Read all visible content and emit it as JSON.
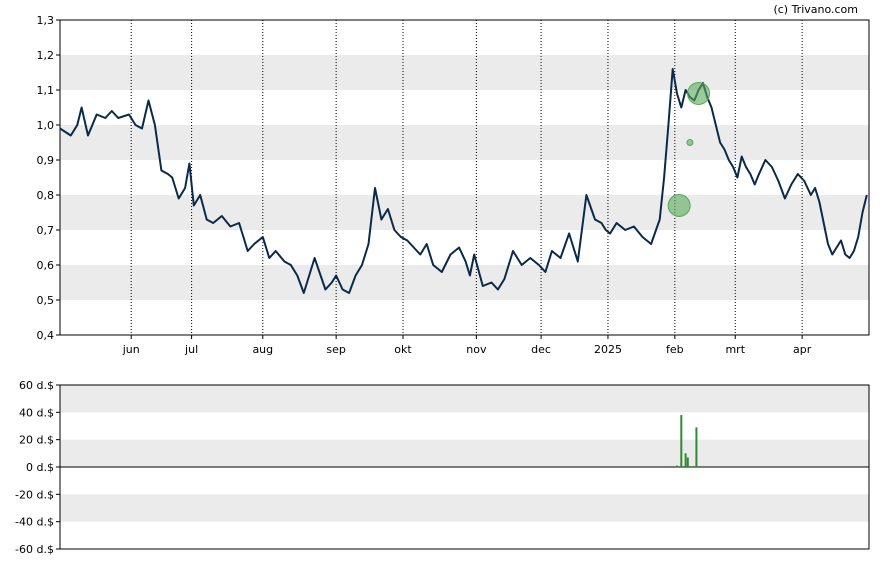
{
  "credit": "(c) Trivano.com",
  "colors": {
    "line": "#0b2a4a",
    "band": "#ebebeb",
    "bubble": "#5aa85a",
    "volume": "#2e8b2e",
    "axis": "#000000"
  },
  "chart_data": [
    {
      "type": "line",
      "title": "",
      "xlabel": "",
      "ylabel": "",
      "ylim": [
        0.4,
        1.3
      ],
      "yticks": [
        0.4,
        0.5,
        0.6,
        0.7,
        0.8,
        0.9,
        1.0,
        1.1,
        1.2,
        1.3
      ],
      "ytick_labels": [
        "0,4",
        "0,5",
        "0,6",
        "0,7",
        "0,8",
        "0,9",
        "1,0",
        "1,1",
        "1,2",
        "1,3"
      ],
      "xlim": [
        0,
        375
      ],
      "xticks": [
        {
          "label": "jun",
          "x": 33
        },
        {
          "label": "jul",
          "x": 61
        },
        {
          "label": "aug",
          "x": 94
        },
        {
          "label": "sep",
          "x": 128
        },
        {
          "label": "okt",
          "x": 159
        },
        {
          "label": "nov",
          "x": 193
        },
        {
          "label": "dec",
          "x": 223
        },
        {
          "label": "2025",
          "x": 254
        },
        {
          "label": "feb",
          "x": 285
        },
        {
          "label": "mrt",
          "x": 313
        },
        {
          "label": "apr",
          "x": 344
        }
      ],
      "grid": "vertical dotted lines at month ticks, alternating horizontal bands",
      "series": [
        {
          "x": [
            0,
            5,
            8,
            10,
            13,
            17,
            21,
            24,
            27,
            32,
            35,
            38,
            41,
            44,
            47,
            50,
            52,
            55,
            58,
            60,
            62,
            65,
            68,
            71,
            75,
            79,
            83,
            87,
            90,
            94,
            97,
            100,
            104,
            107,
            110,
            113,
            118,
            123,
            126,
            128,
            131,
            134,
            137,
            140,
            143,
            146,
            149,
            152,
            155,
            158,
            161,
            164,
            167,
            170,
            173,
            177,
            181,
            185,
            188,
            190,
            192,
            196,
            200,
            203,
            206,
            210,
            214,
            218,
            222,
            225,
            228,
            232,
            236,
            240,
            244,
            248,
            251,
            253,
            255,
            258,
            262,
            266,
            270,
            274,
            278,
            280,
            282,
            284,
            286,
            288,
            290,
            292,
            294,
            296,
            298,
            300,
            302,
            304,
            306,
            308,
            310,
            312,
            314,
            316,
            318,
            320,
            322,
            324,
            327,
            330,
            333,
            336,
            339,
            342,
            345,
            348,
            350,
            352,
            354,
            356,
            358,
            360,
            362,
            364,
            366,
            368,
            370,
            372,
            374
          ],
          "y": [
            0.99,
            0.97,
            1.0,
            1.05,
            0.97,
            1.03,
            1.02,
            1.04,
            1.02,
            1.03,
            1.0,
            0.99,
            1.07,
            1.0,
            0.87,
            0.86,
            0.85,
            0.79,
            0.82,
            0.89,
            0.77,
            0.8,
            0.73,
            0.72,
            0.74,
            0.71,
            0.72,
            0.64,
            0.66,
            0.68,
            0.62,
            0.64,
            0.61,
            0.6,
            0.57,
            0.52,
            0.62,
            0.53,
            0.55,
            0.57,
            0.53,
            0.52,
            0.57,
            0.6,
            0.66,
            0.82,
            0.73,
            0.76,
            0.7,
            0.68,
            0.67,
            0.65,
            0.63,
            0.66,
            0.6,
            0.58,
            0.63,
            0.65,
            0.61,
            0.57,
            0.63,
            0.54,
            0.55,
            0.53,
            0.56,
            0.64,
            0.6,
            0.62,
            0.6,
            0.58,
            0.64,
            0.62,
            0.69,
            0.61,
            0.8,
            0.73,
            0.72,
            0.7,
            0.69,
            0.72,
            0.7,
            0.71,
            0.68,
            0.66,
            0.73,
            0.85,
            1.0,
            1.16,
            1.09,
            1.05,
            1.1,
            1.08,
            1.07,
            1.1,
            1.12,
            1.08,
            1.05,
            1.0,
            0.95,
            0.93,
            0.9,
            0.88,
            0.85,
            0.91,
            0.88,
            0.86,
            0.83,
            0.86,
            0.9,
            0.88,
            0.84,
            0.79,
            0.83,
            0.86,
            0.84,
            0.8,
            0.82,
            0.78,
            0.72,
            0.66,
            0.63,
            0.65,
            0.67,
            0.63,
            0.62,
            0.64,
            0.68,
            0.75,
            0.8
          ]
        }
      ],
      "markers": [
        {
          "x": 287,
          "y": 0.77,
          "size": "large"
        },
        {
          "x": 296,
          "y": 1.09,
          "size": "large"
        },
        {
          "x": 292,
          "y": 0.95,
          "size": "small"
        }
      ]
    },
    {
      "type": "bar",
      "title": "",
      "xlabel": "",
      "ylabel": "",
      "ylim": [
        -60,
        60
      ],
      "yticks": [
        -60,
        -40,
        -20,
        0,
        20,
        40,
        60
      ],
      "ytick_labels": [
        "-60 d.$",
        "-40 d.$",
        "-20 d.$",
        "0 d.$",
        "20 d.$",
        "40 d.$",
        "60 d.$"
      ],
      "xlim": [
        0,
        375
      ],
      "series": [
        {
          "x": [
            286,
            288,
            290,
            291,
            295
          ],
          "values": [
            1,
            38,
            10,
            7,
            29
          ]
        }
      ]
    }
  ]
}
